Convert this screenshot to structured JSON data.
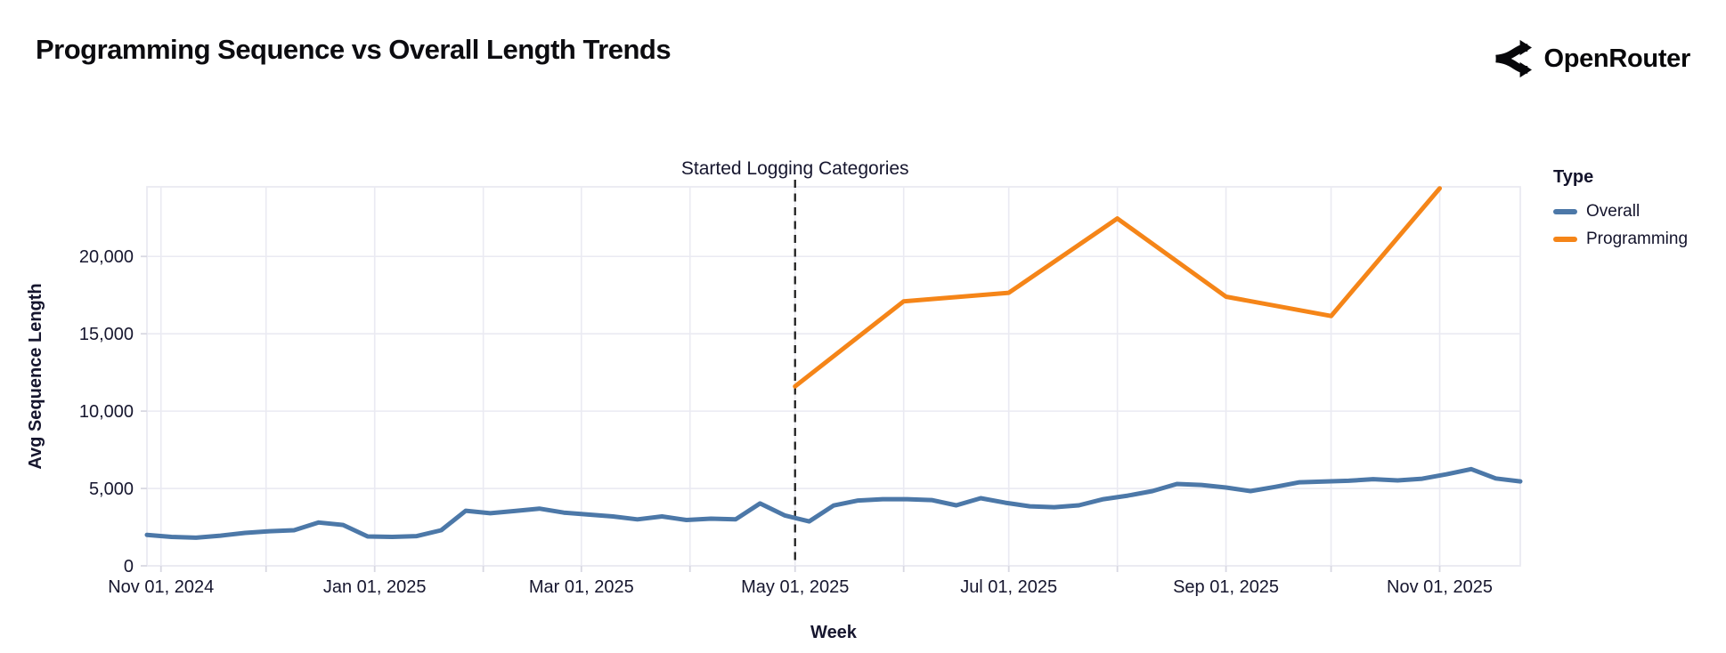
{
  "header": {
    "title": "Programming Sequence vs Overall Length Trends",
    "brand": "OpenRouter"
  },
  "legend": {
    "title": "Type",
    "items": [
      {
        "label": "Overall",
        "color": "#4c78a8"
      },
      {
        "label": "Programming",
        "color": "#f58518"
      }
    ]
  },
  "annotation": {
    "text": "Started Logging Categories",
    "date": "2025-05-01"
  },
  "chart_data": {
    "type": "line",
    "title": "Programming Sequence vs Overall Length Trends",
    "xlabel": "Week",
    "ylabel": "Avg Sequence Length",
    "x_domain": [
      "2024-10-28",
      "2025-11-24"
    ],
    "ylim": [
      0,
      24500
    ],
    "grid": true,
    "legend_position": "right",
    "background": "#ffffff",
    "grid_color": "#eaeaf2",
    "tick_color": "#d8d8e2",
    "text_color": "#16162e",
    "rule_color": "#1f1f1f",
    "x_ticks": [
      {
        "date": "2024-11-01",
        "label": "Nov 01, 2024"
      },
      {
        "date": "2024-12-01",
        "label": ""
      },
      {
        "date": "2025-01-01",
        "label": "Jan 01, 2025"
      },
      {
        "date": "2025-02-01",
        "label": ""
      },
      {
        "date": "2025-03-01",
        "label": "Mar 01, 2025"
      },
      {
        "date": "2025-04-01",
        "label": ""
      },
      {
        "date": "2025-05-01",
        "label": "May 01, 2025"
      },
      {
        "date": "2025-06-01",
        "label": ""
      },
      {
        "date": "2025-07-01",
        "label": "Jul 01, 2025"
      },
      {
        "date": "2025-08-01",
        "label": ""
      },
      {
        "date": "2025-09-01",
        "label": "Sep 01, 2025"
      },
      {
        "date": "2025-10-01",
        "label": ""
      },
      {
        "date": "2025-11-01",
        "label": "Nov 01, 2025"
      }
    ],
    "y_ticks": [
      {
        "value": 0,
        "label": "0"
      },
      {
        "value": 5000,
        "label": "5,000"
      },
      {
        "value": 10000,
        "label": "10,000"
      },
      {
        "value": 15000,
        "label": "15,000"
      },
      {
        "value": 20000,
        "label": "20,000"
      }
    ],
    "series": [
      {
        "name": "Overall",
        "color": "#4c78a8",
        "x": [
          "2024-10-28",
          "2024-11-04",
          "2024-11-11",
          "2024-11-18",
          "2024-11-25",
          "2024-12-02",
          "2024-12-09",
          "2024-12-16",
          "2024-12-23",
          "2024-12-30",
          "2025-01-06",
          "2025-01-13",
          "2025-01-20",
          "2025-01-27",
          "2025-02-03",
          "2025-02-10",
          "2025-02-17",
          "2025-02-24",
          "2025-03-03",
          "2025-03-10",
          "2025-03-17",
          "2025-03-24",
          "2025-03-31",
          "2025-04-07",
          "2025-04-14",
          "2025-04-21",
          "2025-04-28",
          "2025-05-05",
          "2025-05-12",
          "2025-05-19",
          "2025-05-26",
          "2025-06-02",
          "2025-06-09",
          "2025-06-16",
          "2025-06-23",
          "2025-06-30",
          "2025-07-07",
          "2025-07-14",
          "2025-07-21",
          "2025-07-28",
          "2025-08-04",
          "2025-08-11",
          "2025-08-18",
          "2025-08-25",
          "2025-09-01",
          "2025-09-08",
          "2025-09-15",
          "2025-09-22",
          "2025-09-29",
          "2025-10-06",
          "2025-10-13",
          "2025-10-20",
          "2025-10-27",
          "2025-11-03",
          "2025-11-10",
          "2025-11-17",
          "2025-11-24"
        ],
        "values": [
          2000,
          1870,
          1820,
          1950,
          2130,
          2240,
          2300,
          2800,
          2640,
          1900,
          1870,
          1920,
          2300,
          3560,
          3400,
          3540,
          3700,
          3440,
          3310,
          3190,
          3000,
          3190,
          2960,
          3050,
          3000,
          4030,
          3260,
          2870,
          3900,
          4220,
          4310,
          4310,
          4250,
          3910,
          4370,
          4080,
          3850,
          3790,
          3910,
          4310,
          4540,
          4830,
          5290,
          5230,
          5060,
          4830,
          5100,
          5400,
          5450,
          5500,
          5600,
          5520,
          5630,
          5920,
          6250,
          5650,
          5460
        ]
      },
      {
        "name": "Programming",
        "color": "#f58518",
        "x": [
          "2025-05-01",
          "2025-06-01",
          "2025-07-01",
          "2025-08-01",
          "2025-09-01",
          "2025-10-01",
          "2025-11-01"
        ],
        "values": [
          11600,
          17100,
          17650,
          22450,
          17400,
          16150,
          24400
        ]
      }
    ]
  }
}
